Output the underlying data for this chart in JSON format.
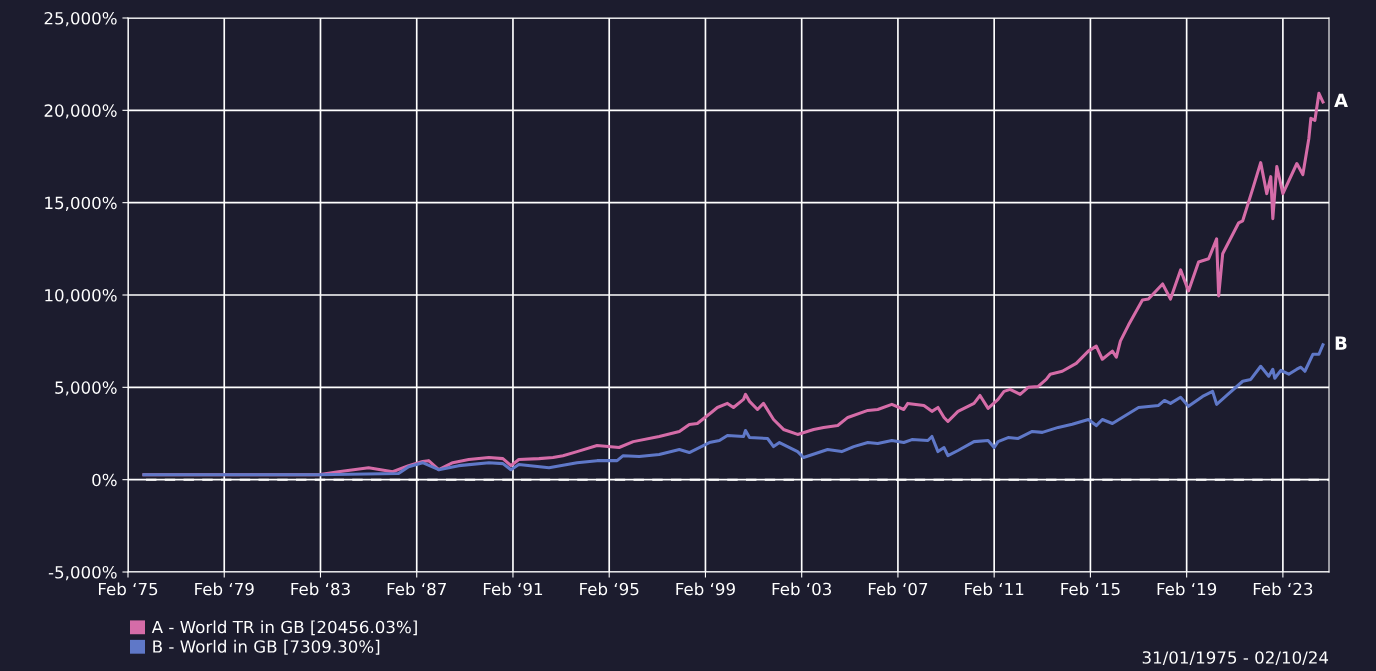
{
  "chart_data": {
    "type": "line",
    "xlim": [
      "1975-02",
      "2025-01"
    ],
    "xticks": [
      {
        "value": "1975-02",
        "label": "Feb ‘75"
      },
      {
        "value": "1979-02",
        "label": "Feb ‘79"
      },
      {
        "value": "1983-02",
        "label": "Feb ‘83"
      },
      {
        "value": "1987-02",
        "label": "Feb ‘87"
      },
      {
        "value": "1991-02",
        "label": "Feb ‘91"
      },
      {
        "value": "1995-02",
        "label": "Feb ‘95"
      },
      {
        "value": "1999-02",
        "label": "Feb ‘99"
      },
      {
        "value": "2003-02",
        "label": "Feb ‘03"
      },
      {
        "value": "2007-02",
        "label": "Feb ‘07"
      },
      {
        "value": "2011-02",
        "label": "Feb ‘11"
      },
      {
        "value": "2015-02",
        "label": "Feb ‘15"
      },
      {
        "value": "2019-02",
        "label": "Feb ‘19"
      },
      {
        "value": "2023-02",
        "label": "Feb ‘23"
      }
    ],
    "ylim": [
      -5000,
      25000
    ],
    "yticks": [
      {
        "value": -5000,
        "label": "-5,000%"
      },
      {
        "value": 0,
        "label": "0%"
      },
      {
        "value": 5000,
        "label": "5,000%"
      },
      {
        "value": 10000,
        "label": "10,000%"
      },
      {
        "value": 15000,
        "label": "15,000%"
      },
      {
        "value": 20000,
        "label": "20,000%"
      },
      {
        "value": 25000,
        "label": "25,000%"
      }
    ],
    "grid": true,
    "legend": "bottom left",
    "ref_lines": [
      {
        "axis": "y",
        "value": 0,
        "color": "#ffffff",
        "line_style": "dashed"
      }
    ],
    "series": [
      {
        "name": "A - World TR in GB [20456.03%]",
        "color": "#d56ca8",
        "x": [
          "1975-10",
          "1983-01",
          "1983-11",
          "1985-02",
          "1986-02",
          "1986-10",
          "1987-05",
          "1987-08",
          "1988-01",
          "1988-08",
          "1989-04",
          "1990-02",
          "1990-09",
          "1991-01",
          "1991-05",
          "1992-03",
          "1992-10",
          "1993-03",
          "1993-10",
          "1994-08",
          "1995-07",
          "1996-02",
          "1997-03",
          "1998-01",
          "1998-06",
          "1998-10",
          "1999-05",
          "1999-08",
          "2000-01",
          "2000-04",
          "2000-09",
          "2000-10",
          "2000-12",
          "2001-04",
          "2001-07",
          "2001-12",
          "2002-05",
          "2002-12",
          "2003-08",
          "2004-01",
          "2004-08",
          "2005-01",
          "2005-11",
          "2006-04",
          "2006-11",
          "2007-05",
          "2007-07",
          "2008-03",
          "2008-07",
          "2008-10",
          "2009-01",
          "2009-03",
          "2009-08",
          "2010-04",
          "2010-07",
          "2010-11",
          "2011-04",
          "2011-07",
          "2011-10",
          "2012-03",
          "2012-07",
          "2012-12",
          "2013-04",
          "2013-06",
          "2013-12",
          "2014-07",
          "2015-01",
          "2015-05",
          "2015-08",
          "2016-01",
          "2016-03",
          "2016-05",
          "2016-09",
          "2017-04",
          "2017-07",
          "2018-02",
          "2018-06",
          "2018-11",
          "2019-03",
          "2019-08",
          "2020-01",
          "2020-05",
          "2020-06",
          "2020-08",
          "2021-04",
          "2021-06",
          "2021-11",
          "2022-03",
          "2022-06",
          "2022-08",
          "2022-09",
          "2022-11",
          "2023-02",
          "2023-09",
          "2023-12",
          "2024-03",
          "2024-04",
          "2024-06",
          "2024-08",
          "2024-10"
        ],
        "values": [
          270,
          270,
          430,
          650,
          430,
          760,
          980,
          1030,
          540,
          920,
          1090,
          1200,
          1140,
          760,
          1090,
          1140,
          1200,
          1300,
          1520,
          1850,
          1740,
          2060,
          2340,
          2610,
          2990,
          3040,
          3640,
          3910,
          4130,
          3910,
          4350,
          4620,
          4240,
          3800,
          4130,
          3260,
          2720,
          2450,
          2720,
          2830,
          2930,
          3370,
          3750,
          3800,
          4080,
          3800,
          4130,
          4020,
          3700,
          3910,
          3370,
          3150,
          3700,
          4130,
          4560,
          3860,
          4350,
          4780,
          4890,
          4620,
          5000,
          5050,
          5430,
          5710,
          5870,
          6300,
          6960,
          7230,
          6520,
          6960,
          6630,
          7500,
          8370,
          9730,
          9780,
          10600,
          9780,
          11360,
          10220,
          11790,
          11960,
          13040,
          9950,
          12230,
          13910,
          14020,
          15760,
          17170,
          15490,
          16410,
          14130,
          16960,
          15490,
          17120,
          16520,
          18480,
          19570,
          19460,
          20920,
          20456
        ]
      },
      {
        "name": "B - World in GB [7309.30%]",
        "color": "#5f78c8",
        "x": [
          "1975-10",
          "1983-01",
          "1986-05",
          "1986-10",
          "1987-05",
          "1988-01",
          "1988-11",
          "1990-02",
          "1990-09",
          "1991-01",
          "1991-05",
          "1992-08",
          "1993-10",
          "1994-08",
          "1995-06",
          "1995-09",
          "1996-05",
          "1997-03",
          "1998-01",
          "1998-06",
          "1999-04",
          "1999-09",
          "2000-01",
          "2000-09",
          "2000-10",
          "2000-12",
          "2001-09",
          "2001-12",
          "2002-03",
          "2002-12",
          "2003-03",
          "2004-03",
          "2004-10",
          "2005-04",
          "2005-11",
          "2006-04",
          "2006-11",
          "2007-05",
          "2007-09",
          "2008-05",
          "2008-07",
          "2008-10",
          "2009-01",
          "2009-03",
          "2009-08",
          "2010-04",
          "2010-11",
          "2011-02",
          "2011-04",
          "2011-09",
          "2012-02",
          "2012-09",
          "2013-02",
          "2013-10",
          "2014-05",
          "2015-01",
          "2015-05",
          "2015-08",
          "2016-01",
          "2017-02",
          "2017-12",
          "2018-03",
          "2018-06",
          "2018-11",
          "2019-03",
          "2019-10",
          "2020-03",
          "2020-05",
          "2020-10",
          "2021-06",
          "2021-10",
          "2022-03",
          "2022-07",
          "2022-09",
          "2022-10",
          "2023-01",
          "2023-05",
          "2023-09",
          "2023-11",
          "2024-01",
          "2024-05",
          "2024-08",
          "2024-10"
        ],
        "values": [
          270,
          270,
          330,
          700,
          920,
          540,
          760,
          920,
          870,
          540,
          820,
          650,
          920,
          1030,
          1030,
          1300,
          1250,
          1360,
          1630,
          1470,
          2010,
          2120,
          2390,
          2340,
          2660,
          2280,
          2230,
          1790,
          2010,
          1520,
          1200,
          1630,
          1520,
          1790,
          2010,
          1960,
          2120,
          2010,
          2170,
          2120,
          2340,
          1520,
          1740,
          1300,
          1580,
          2060,
          2120,
          1740,
          2060,
          2280,
          2230,
          2610,
          2560,
          2830,
          3000,
          3260,
          2930,
          3260,
          3040,
          3910,
          4020,
          4290,
          4130,
          4460,
          3970,
          4510,
          4780,
          4080,
          4560,
          5330,
          5430,
          6140,
          5600,
          5980,
          5490,
          5920,
          5710,
          5980,
          6090,
          5870,
          6790,
          6790,
          7309
        ]
      }
    ],
    "annotations": [
      {
        "text": "A",
        "x": "2024-10",
        "y": 20456
      },
      {
        "text": "B",
        "x": "2024-10",
        "y": 7309
      },
      "31/01/1975 - 02/10/24"
    ]
  }
}
